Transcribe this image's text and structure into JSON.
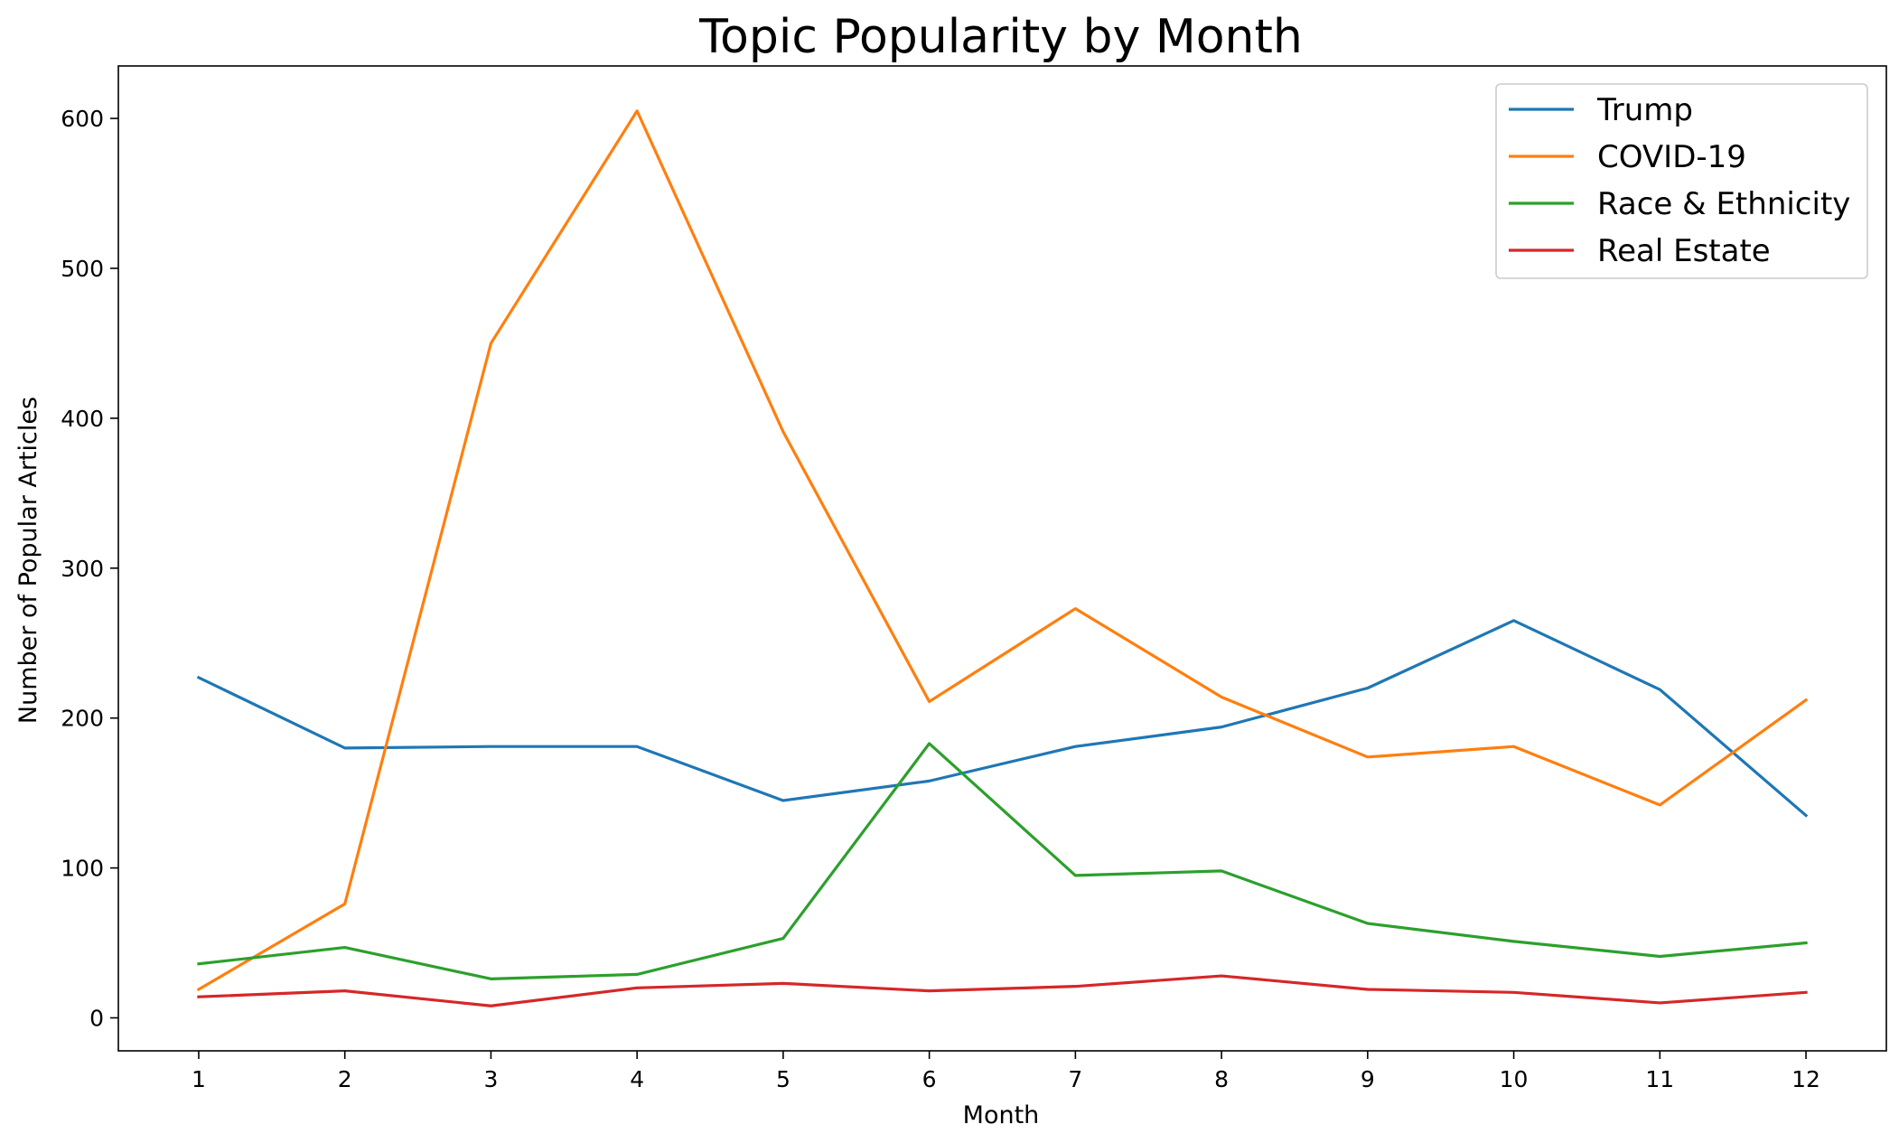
{
  "chart_data": {
    "type": "line",
    "title": "Topic Popularity by Month",
    "xlabel": "Month",
    "ylabel": "Number of Popular Articles",
    "x": [
      1,
      2,
      3,
      4,
      5,
      6,
      7,
      8,
      9,
      10,
      11,
      12
    ],
    "xlim": [
      0.45,
      12.55
    ],
    "ylim": [
      -22,
      635
    ],
    "yticks": [
      0,
      100,
      200,
      300,
      400,
      500,
      600
    ],
    "grid": false,
    "legend_position": "top-right",
    "series": [
      {
        "name": "Trump",
        "color": "#1f77b4",
        "values": [
          227,
          180,
          181,
          181,
          145,
          158,
          181,
          194,
          220,
          265,
          219,
          135
        ]
      },
      {
        "name": "COVID-19",
        "color": "#ff7f0e",
        "values": [
          19,
          76,
          450,
          605,
          391,
          211,
          273,
          214,
          174,
          181,
          142,
          212
        ]
      },
      {
        "name": "Race & Ethnicity",
        "color": "#2ca02c",
        "values": [
          36,
          47,
          26,
          29,
          53,
          183,
          95,
          98,
          63,
          51,
          41,
          50
        ]
      },
      {
        "name": "Real Estate",
        "color": "#d62728",
        "values": [
          14,
          18,
          8,
          20,
          23,
          18,
          21,
          28,
          19,
          17,
          10,
          17
        ]
      }
    ]
  }
}
